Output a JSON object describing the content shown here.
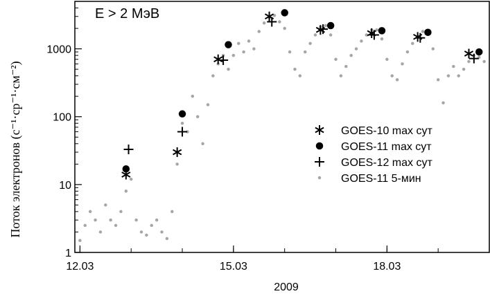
{
  "chart_data": {
    "type": "scatter",
    "annotation": "E > 2 МэВ",
    "ylabel": "Поток электронов (с⁻¹·ср⁻¹·см⁻²)",
    "xlabel_year": "2009",
    "x_ticks": [
      {
        "day": 12,
        "label": "12.03"
      },
      {
        "day": 15,
        "label": "15.03"
      },
      {
        "day": 18,
        "label": "18.03"
      }
    ],
    "y_ticks": [
      {
        "value": 1,
        "label": "1"
      },
      {
        "value": 10,
        "label": "10"
      },
      {
        "value": 100,
        "label": "100"
      },
      {
        "value": 1000,
        "label": "1000"
      }
    ],
    "xlim": [
      11.9,
      20.0
    ],
    "ylim": [
      1,
      5000
    ],
    "y_scale": "log",
    "legend_position": "center-right",
    "colors": {
      "scatter": "#a6a6a6",
      "markers": "#000000"
    },
    "series": [
      {
        "name": "GOES-10 max сут",
        "marker": "asterisk",
        "points": [
          [
            12.9,
            14
          ],
          [
            13.9,
            30
          ],
          [
            14.7,
            700
          ],
          [
            15.7,
            3000
          ],
          [
            16.7,
            1900
          ],
          [
            17.7,
            1700
          ],
          [
            18.6,
            1500
          ],
          [
            19.6,
            850
          ]
        ]
      },
      {
        "name": "GOES-11 max сут",
        "marker": "circle",
        "points": [
          [
            12.9,
            17
          ],
          [
            14.0,
            110
          ],
          [
            14.9,
            1150
          ],
          [
            16.0,
            3400
          ],
          [
            16.9,
            2200
          ],
          [
            17.9,
            1850
          ],
          [
            18.8,
            1750
          ],
          [
            19.8,
            900
          ]
        ]
      },
      {
        "name": "GOES-12 max сут",
        "marker": "plus",
        "points": [
          [
            12.95,
            33
          ],
          [
            14.0,
            60
          ],
          [
            14.8,
            680
          ],
          [
            15.75,
            2500
          ],
          [
            16.75,
            1950
          ],
          [
            17.75,
            1600
          ],
          [
            18.65,
            1450
          ],
          [
            19.7,
            720
          ]
        ]
      },
      {
        "name": "GOES-11 5-мин",
        "marker": "dot",
        "points": [
          [
            12.0,
            1.5
          ],
          [
            12.1,
            2.5
          ],
          [
            12.2,
            4
          ],
          [
            12.3,
            3
          ],
          [
            12.4,
            2
          ],
          [
            12.5,
            5
          ],
          [
            12.6,
            3
          ],
          [
            12.7,
            2.5
          ],
          [
            12.8,
            4
          ],
          [
            12.9,
            8
          ],
          [
            13.0,
            12
          ],
          [
            13.1,
            3
          ],
          [
            13.2,
            2
          ],
          [
            13.3,
            1.8
          ],
          [
            13.4,
            2.5
          ],
          [
            13.5,
            3
          ],
          [
            13.6,
            2
          ],
          [
            13.7,
            1.6
          ],
          [
            13.8,
            4
          ],
          [
            13.9,
            20
          ],
          [
            14.0,
            80
          ],
          [
            14.1,
            60
          ],
          [
            14.2,
            200
          ],
          [
            14.3,
            100
          ],
          [
            14.4,
            40
          ],
          [
            14.5,
            150
          ],
          [
            14.6,
            400
          ],
          [
            14.7,
            600
          ],
          [
            14.8,
            800
          ],
          [
            14.9,
            500
          ],
          [
            15.0,
            800
          ],
          [
            15.1,
            1200
          ],
          [
            15.2,
            900
          ],
          [
            15.3,
            1300
          ],
          [
            15.4,
            1000
          ],
          [
            15.5,
            1800
          ],
          [
            15.6,
            2400
          ],
          [
            15.7,
            2900
          ],
          [
            15.8,
            3100
          ],
          [
            15.9,
            2500
          ],
          [
            16.0,
            2000
          ],
          [
            16.1,
            900
          ],
          [
            16.2,
            500
          ],
          [
            16.3,
            400
          ],
          [
            16.4,
            900
          ],
          [
            16.5,
            1200
          ],
          [
            16.6,
            1600
          ],
          [
            16.7,
            2100
          ],
          [
            16.8,
            2200
          ],
          [
            16.9,
            1600
          ],
          [
            17.0,
            700
          ],
          [
            17.1,
            400
          ],
          [
            17.2,
            550
          ],
          [
            17.3,
            800
          ],
          [
            17.4,
            1000
          ],
          [
            17.5,
            1300
          ],
          [
            17.6,
            1600
          ],
          [
            17.7,
            1900
          ],
          [
            17.8,
            1900
          ],
          [
            17.9,
            1400
          ],
          [
            18.0,
            700
          ],
          [
            18.1,
            400
          ],
          [
            18.2,
            350
          ],
          [
            18.3,
            600
          ],
          [
            18.4,
            900
          ],
          [
            18.5,
            1200
          ],
          [
            18.6,
            1500
          ],
          [
            18.7,
            1800
          ],
          [
            18.8,
            1700
          ],
          [
            18.9,
            1000
          ],
          [
            19.0,
            350
          ],
          [
            19.1,
            160
          ],
          [
            19.2,
            400
          ],
          [
            19.3,
            550
          ],
          [
            19.4,
            400
          ],
          [
            19.5,
            500
          ],
          [
            19.6,
            650
          ],
          [
            19.7,
            800
          ],
          [
            19.8,
            750
          ],
          [
            19.9,
            650
          ]
        ]
      }
    ]
  }
}
